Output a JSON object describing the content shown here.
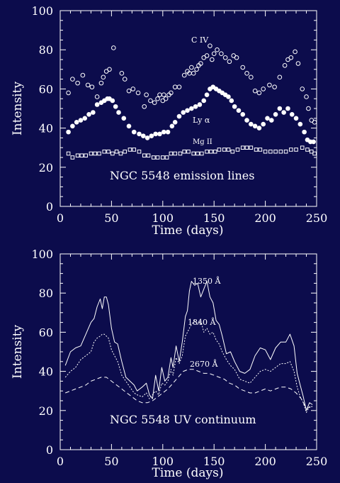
{
  "colors": {
    "background": "#0c0c4c",
    "foreground": "#ffffff"
  },
  "chart_data": [
    {
      "type": "scatter",
      "title": "",
      "annotation": "NGC 5548 emission lines",
      "xlabel": "Time (days)",
      "ylabel": "Intensity",
      "xlim": [
        0,
        250
      ],
      "ylim": [
        0,
        100
      ],
      "xticks": [
        0,
        50,
        100,
        150,
        200,
        250
      ],
      "yticks": [
        0,
        20,
        40,
        60,
        80,
        100
      ],
      "grid": false,
      "series": [
        {
          "name": "C IV",
          "marker": "open-circle",
          "x": [
            8,
            12,
            17,
            22,
            27,
            31,
            36,
            40,
            42,
            45,
            48,
            52,
            60,
            63,
            67,
            71,
            76,
            82,
            84,
            88,
            92,
            95,
            97,
            100,
            101,
            103,
            106,
            108,
            112,
            116,
            121,
            124,
            126,
            128,
            130,
            133,
            135,
            137,
            140,
            143,
            146,
            148,
            150,
            153,
            157,
            161,
            165,
            169,
            172,
            178,
            182,
            186,
            190,
            194,
            198,
            204,
            209,
            214,
            219,
            222,
            225,
            229,
            232,
            236,
            240,
            242,
            245,
            248
          ],
          "y": [
            58,
            65,
            63,
            67,
            62,
            61,
            56,
            63,
            66,
            69,
            70,
            81,
            68,
            65,
            59,
            60,
            58,
            51,
            57,
            54,
            53,
            55,
            57,
            54,
            57,
            55,
            57,
            58,
            61,
            61,
            67,
            69,
            68,
            71,
            68,
            70,
            72,
            73,
            76,
            77,
            82,
            75,
            78,
            80,
            78,
            76,
            74,
            77,
            76,
            71,
            68,
            66,
            59,
            58,
            60,
            62,
            61,
            66,
            72,
            75,
            76,
            79,
            73,
            60,
            56,
            50,
            44,
            43
          ]
        },
        {
          "name": "Ly α",
          "marker": "filled-circle",
          "x": [
            8,
            12,
            16,
            20,
            24,
            28,
            32,
            36,
            40,
            43,
            46,
            48,
            51,
            54,
            57,
            62,
            67,
            72,
            77,
            81,
            85,
            89,
            93,
            97,
            101,
            105,
            109,
            112,
            116,
            120,
            124,
            128,
            132,
            136,
            140,
            143,
            146,
            149,
            152,
            155,
            158,
            161,
            164,
            167,
            170,
            174,
            178,
            182,
            186,
            190,
            194,
            198,
            202,
            206,
            210,
            214,
            218,
            222,
            226,
            230,
            234,
            238,
            241,
            244,
            247
          ],
          "y": [
            38,
            41,
            43,
            44,
            45,
            47,
            48,
            52,
            53,
            54,
            55,
            55,
            54,
            51,
            48,
            45,
            41,
            38,
            37,
            36,
            35,
            36,
            37,
            37,
            38,
            38,
            41,
            43,
            46,
            48,
            49,
            50,
            51,
            52,
            54,
            57,
            60,
            61,
            60,
            59,
            58,
            57,
            56,
            54,
            51,
            49,
            47,
            44,
            42,
            41,
            40,
            42,
            45,
            44,
            47,
            50,
            48,
            50,
            47,
            45,
            42,
            38,
            34,
            33,
            33
          ]
        },
        {
          "name": "Mg II",
          "marker": "open-square",
          "x": [
            8,
            12,
            17,
            21,
            25,
            30,
            34,
            38,
            43,
            47,
            51,
            55,
            59,
            63,
            68,
            72,
            77,
            82,
            86,
            91,
            95,
            100,
            104,
            108,
            112,
            117,
            121,
            125,
            130,
            134,
            138,
            143,
            147,
            151,
            155,
            160,
            164,
            168,
            173,
            178,
            182,
            186,
            191,
            195,
            200,
            205,
            210,
            215,
            220,
            225,
            230,
            236,
            241,
            245,
            248
          ],
          "y": [
            27,
            25,
            26,
            26,
            26,
            27,
            27,
            27,
            28,
            28,
            27,
            28,
            27,
            28,
            29,
            29,
            28,
            26,
            26,
            25,
            25,
            25,
            25,
            27,
            27,
            27,
            28,
            28,
            27,
            27,
            27,
            28,
            28,
            28,
            29,
            29,
            29,
            28,
            29,
            30,
            30,
            30,
            29,
            29,
            28,
            28,
            28,
            28,
            28,
            29,
            29,
            30,
            29,
            28,
            27
          ]
        }
      ]
    },
    {
      "type": "line",
      "title": "",
      "annotation": "NGC 5548 UV continuum",
      "xlabel": "Time (days)",
      "ylabel": "Intensity",
      "xlim": [
        0,
        250
      ],
      "ylim": [
        0,
        100
      ],
      "xticks": [
        0,
        50,
        100,
        150,
        200,
        250
      ],
      "yticks": [
        0,
        20,
        40,
        60,
        80,
        100
      ],
      "grid": false,
      "series": [
        {
          "name": "1350 Å",
          "style": "solid",
          "x": [
            5,
            10,
            15,
            20,
            25,
            30,
            33,
            36,
            39,
            41,
            43,
            45,
            47,
            50,
            53,
            56,
            60,
            64,
            68,
            72,
            75,
            80,
            84,
            87,
            90,
            93,
            96,
            99,
            102,
            105,
            108,
            110,
            113,
            116,
            119,
            122,
            124,
            126,
            128,
            131,
            134,
            137,
            140,
            143,
            146,
            149,
            152,
            155,
            158,
            162,
            166,
            170,
            175,
            180,
            185,
            190,
            195,
            200,
            205,
            210,
            215,
            220,
            224,
            228,
            231,
            234,
            237,
            240,
            243,
            246
          ],
          "y": [
            43,
            50,
            52,
            53,
            59,
            65,
            67,
            73,
            77,
            72,
            78,
            78,
            74,
            62,
            55,
            54,
            45,
            37,
            35,
            33,
            30,
            32,
            34,
            28,
            26,
            38,
            30,
            42,
            35,
            37,
            47,
            42,
            53,
            45,
            55,
            68,
            71,
            81,
            86,
            84,
            85,
            78,
            82,
            86,
            78,
            75,
            66,
            64,
            58,
            49,
            50,
            45,
            40,
            39,
            41,
            48,
            52,
            51,
            46,
            52,
            55,
            55,
            59,
            53,
            39,
            33,
            27,
            20,
            24,
            23
          ]
        },
        {
          "name": "1840 Å",
          "style": "dotted",
          "x": [
            5,
            10,
            15,
            20,
            25,
            30,
            33,
            36,
            39,
            41,
            43,
            45,
            47,
            50,
            53,
            56,
            60,
            64,
            68,
            72,
            75,
            80,
            84,
            87,
            90,
            93,
            96,
            99,
            102,
            105,
            108,
            110,
            113,
            116,
            119,
            122,
            124,
            126,
            128,
            131,
            134,
            137,
            140,
            143,
            146,
            149,
            152,
            155,
            158,
            162,
            166,
            170,
            175,
            180,
            185,
            190,
            195,
            200,
            205,
            210,
            215,
            220,
            224,
            228,
            231,
            234,
            237,
            240,
            243,
            246
          ],
          "y": [
            37,
            40,
            42,
            46,
            48,
            50,
            55,
            57,
            58,
            59,
            59,
            58,
            57,
            51,
            48,
            45,
            38,
            35,
            32,
            29,
            28,
            27,
            29,
            26,
            28,
            30,
            28,
            34,
            33,
            35,
            41,
            38,
            47,
            44,
            48,
            58,
            60,
            62,
            64,
            66,
            64,
            66,
            60,
            62,
            59,
            60,
            56,
            54,
            50,
            46,
            43,
            41,
            36,
            35,
            34,
            37,
            40,
            41,
            40,
            42,
            44,
            44,
            45,
            40,
            32,
            27,
            24,
            19,
            22,
            22
          ]
        },
        {
          "name": "2670 Å",
          "style": "dashed",
          "x": [
            5,
            10,
            15,
            20,
            25,
            30,
            35,
            40,
            45,
            50,
            55,
            60,
            65,
            70,
            75,
            80,
            85,
            90,
            95,
            100,
            105,
            110,
            115,
            120,
            125,
            130,
            135,
            140,
            145,
            150,
            155,
            160,
            165,
            170,
            175,
            180,
            185,
            190,
            195,
            200,
            205,
            210,
            215,
            220,
            225,
            230,
            235,
            240,
            245
          ],
          "y": [
            29,
            30,
            31,
            32,
            33,
            35,
            36,
            37,
            37,
            35,
            33,
            31,
            29,
            27,
            25,
            24,
            24,
            25,
            27,
            29,
            31,
            34,
            37,
            40,
            41,
            41,
            40,
            39,
            39,
            38,
            37,
            36,
            34,
            33,
            31,
            30,
            29,
            29,
            30,
            31,
            30,
            31,
            32,
            32,
            31,
            29,
            26,
            21,
            22
          ]
        }
      ]
    }
  ]
}
